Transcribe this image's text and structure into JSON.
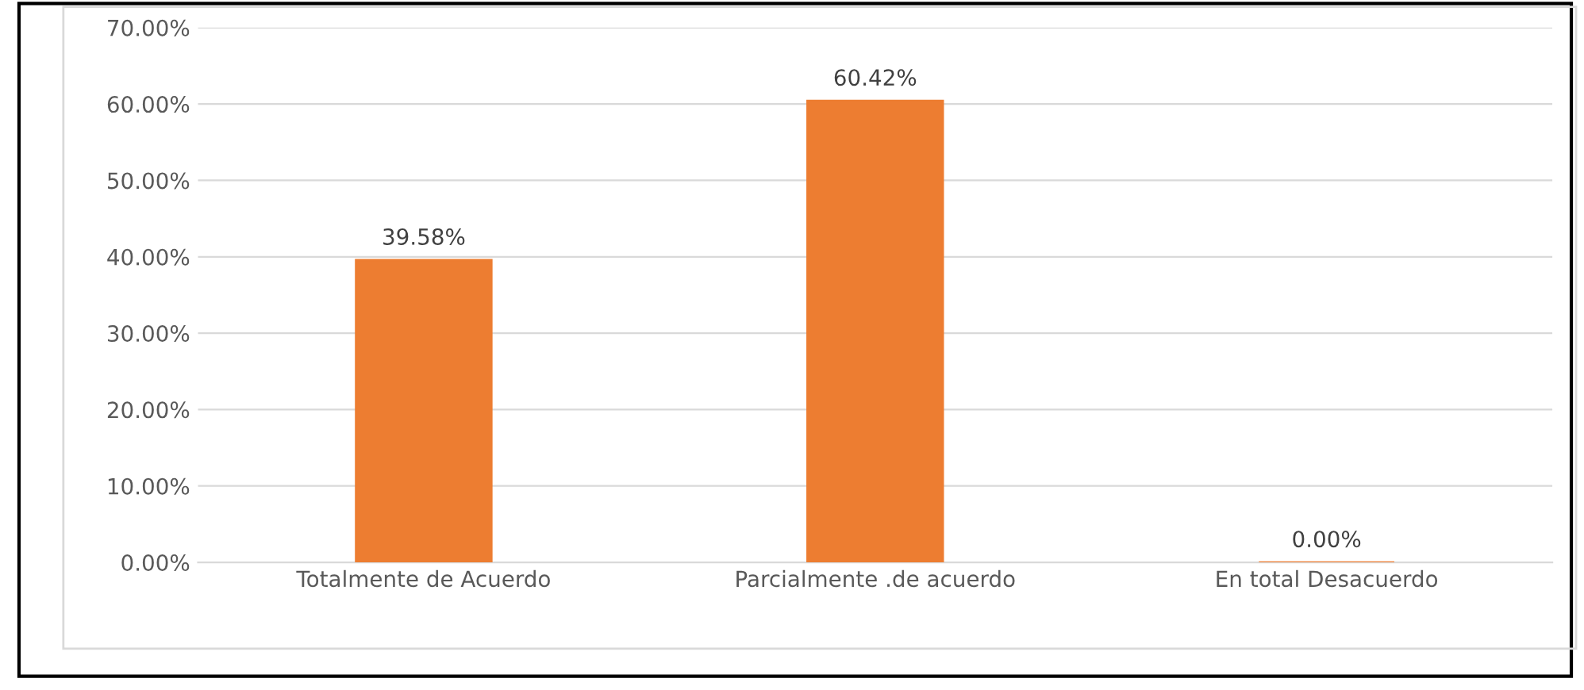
{
  "chart_data": {
    "type": "bar",
    "categories": [
      "Totalmente de Acuerdo",
      "Parcialmente .de acuerdo",
      "En total Desacuerdo"
    ],
    "values": [
      39.58,
      60.42,
      0.0
    ],
    "value_labels": [
      "39.58%",
      "60.42%",
      "0.00%"
    ],
    "color": "#ed7d31",
    "ylim": [
      0,
      70
    ],
    "yticks": [
      {
        "value": 0,
        "label": "0.00%"
      },
      {
        "value": 10,
        "label": "10.00%"
      },
      {
        "value": 20,
        "label": "20.00%"
      },
      {
        "value": 30,
        "label": "30.00%"
      },
      {
        "value": 40,
        "label": "40.00%"
      },
      {
        "value": 50,
        "label": "50.00%"
      },
      {
        "value": 60,
        "label": "60.00%"
      },
      {
        "value": 70,
        "label": "70.00%"
      }
    ],
    "grid": "y",
    "legend": false
  }
}
